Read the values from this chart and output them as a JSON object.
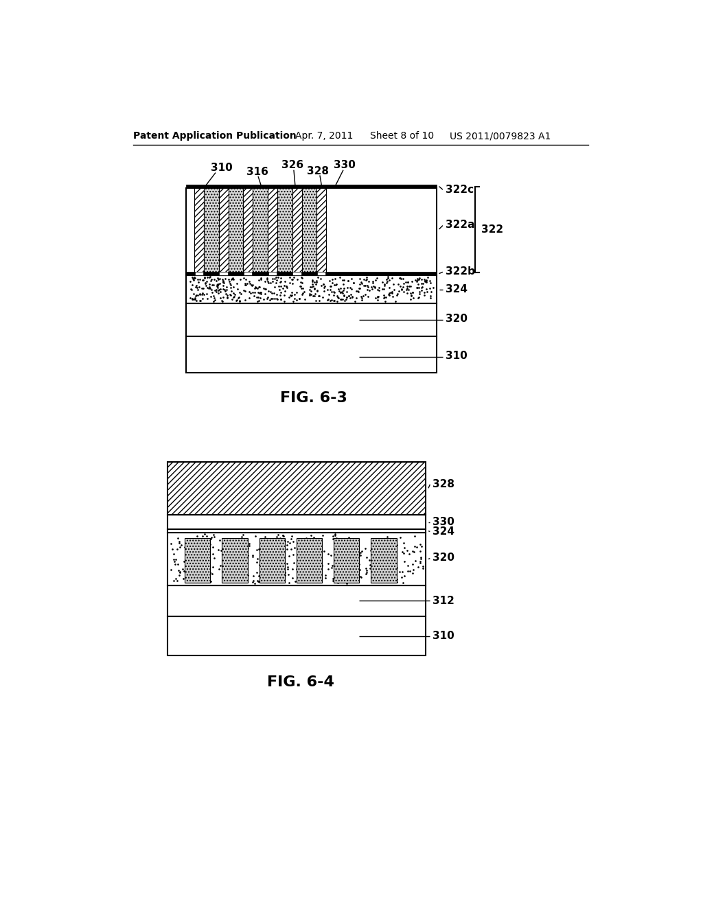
{
  "header_text": "Patent Application Publication",
  "header_date": "Apr. 7, 2011",
  "header_sheet": "Sheet 8 of 10",
  "header_patent": "US 2011/0079823 A1",
  "fig1_title": "FIG. 6-3",
  "fig2_title": "FIG. 6-4",
  "bg_color": "#ffffff",
  "line_color": "#000000"
}
